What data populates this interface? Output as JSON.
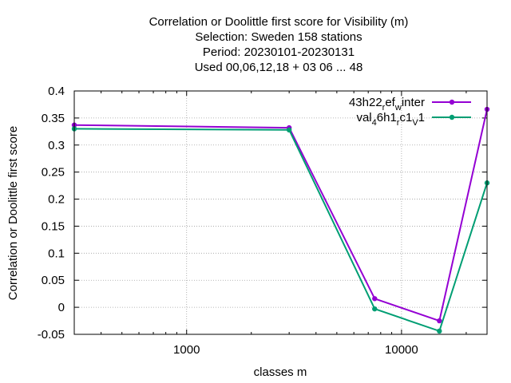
{
  "chart_data": {
    "type": "line",
    "title_lines": [
      "Correlation or Doolittle first score  for Visibility (m)",
      "Selection: Sweden    158 stations",
      "Period: 20230101-20230131",
      "Used  00,06,12,18  + 03 06 ... 48"
    ],
    "xlabel": "classes m",
    "ylabel": "Correlation or Doolittle first score",
    "x_scale": "log",
    "xlim": [
      300,
      25000
    ],
    "ylim": [
      -0.05,
      0.4
    ],
    "x_ticks": [
      1000,
      10000
    ],
    "x_tick_labels": [
      "1000",
      "10000"
    ],
    "y_ticks": [
      -0.05,
      0,
      0.05,
      0.1,
      0.15,
      0.2,
      0.25,
      0.3,
      0.35,
      0.4
    ],
    "y_tick_labels": [
      "-0.05",
      "0",
      "0.05",
      "0.1",
      "0.15",
      "0.2",
      "0.25",
      "0.3",
      "0.35",
      "0.4"
    ],
    "grid": true,
    "legend_position": "top-right",
    "series": [
      {
        "name_parts": [
          [
            "43h22",
            ""
          ],
          [
            "r",
            "sub"
          ],
          [
            "ef",
            ""
          ],
          [
            "w",
            "sub"
          ],
          [
            "inter",
            ""
          ]
        ],
        "color": "#9400d3",
        "x": [
          300,
          3000,
          7500,
          15000,
          25000
        ],
        "y": [
          0.337,
          0.332,
          0.016,
          -0.025,
          0.366
        ]
      },
      {
        "name_parts": [
          [
            "val",
            ""
          ],
          [
            "4",
            "sub"
          ],
          [
            "6h1",
            ""
          ],
          [
            "r",
            "sub"
          ],
          [
            "c1",
            ""
          ],
          [
            "V",
            "sub"
          ],
          [
            "1",
            ""
          ]
        ],
        "color": "#009e73",
        "x": [
          300,
          3000,
          7500,
          15000,
          25000
        ],
        "y": [
          0.33,
          0.328,
          -0.003,
          -0.044,
          0.23
        ]
      }
    ]
  }
}
